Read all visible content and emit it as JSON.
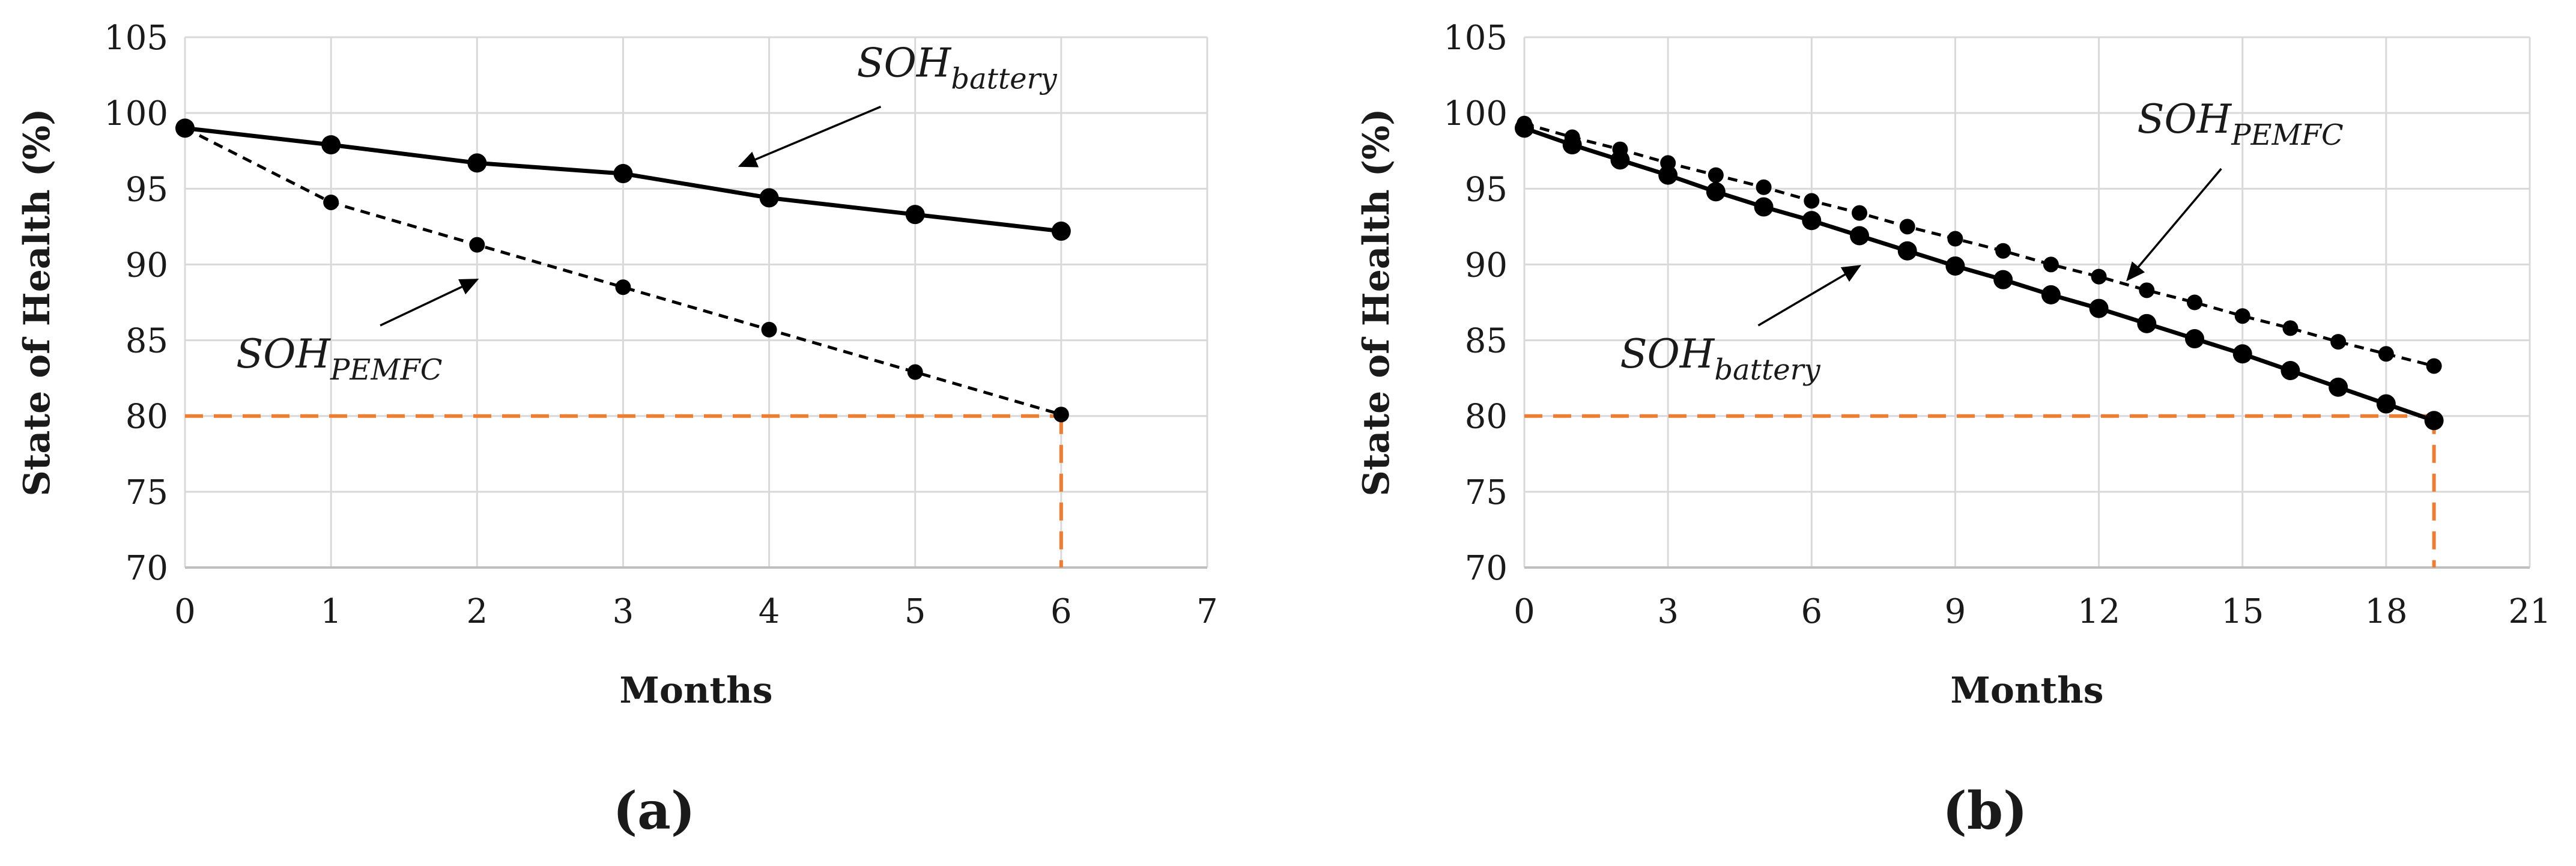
{
  "figure": {
    "background": "#ffffff",
    "grid_color": "#d9d9d9",
    "line_color": "#000000",
    "threshold_color": "#ed7d31"
  },
  "chart_data": [
    {
      "type": "line",
      "panel_label": "(a)",
      "title": "",
      "xlabel": "Months",
      "ylabel": "State of Health (%)",
      "xlim": [
        0,
        7
      ],
      "ylim": [
        70,
        105
      ],
      "xticks": [
        0,
        1,
        2,
        3,
        4,
        5,
        6,
        7
      ],
      "yticks": [
        70,
        75,
        80,
        85,
        90,
        95,
        100,
        105
      ],
      "grid": true,
      "series": [
        {
          "name": "SOH_battery",
          "label_main": "SOH",
          "label_sub": "battery",
          "style": "solid",
          "x": [
            0,
            1,
            2,
            3,
            4,
            5,
            6
          ],
          "y": [
            99.0,
            97.9,
            96.7,
            96.0,
            94.4,
            93.3,
            92.2
          ]
        },
        {
          "name": "SOH_PEMFC",
          "label_main": "SOH",
          "label_sub": "PEMFC",
          "style": "dashed",
          "x": [
            0,
            1,
            2,
            3,
            4,
            5,
            6
          ],
          "y": [
            99.0,
            94.1,
            91.3,
            88.5,
            85.7,
            82.9,
            80.1
          ]
        }
      ],
      "annotations": [
        {
          "series": "SOH_battery",
          "text_xy": [
            4.6,
            102.4
          ],
          "arrow_to": [
            3.8,
            96.5
          ]
        },
        {
          "series": "SOH_PEMFC",
          "text_xy": [
            0.35,
            83.2
          ],
          "arrow_to": [
            2.0,
            89.0
          ]
        }
      ],
      "threshold": {
        "y": 80,
        "x_end": 6
      }
    },
    {
      "type": "line",
      "panel_label": "(b)",
      "title": "",
      "xlabel": "Months",
      "ylabel": "State of Health  (%)",
      "xlim": [
        0,
        21
      ],
      "ylim": [
        70,
        105
      ],
      "xticks": [
        0,
        3,
        6,
        9,
        12,
        15,
        18,
        21
      ],
      "yticks": [
        70,
        75,
        80,
        85,
        90,
        95,
        100,
        105
      ],
      "grid": true,
      "series": [
        {
          "name": "SOH_PEMFC",
          "label_main": "SOH",
          "label_sub": "PEMFC",
          "style": "dashed",
          "x": [
            0,
            1,
            2,
            3,
            4,
            5,
            6,
            7,
            8,
            9,
            10,
            11,
            12,
            13,
            14,
            15,
            16,
            17,
            18,
            19
          ],
          "y": [
            99.3,
            98.4,
            97.6,
            96.7,
            95.9,
            95.1,
            94.2,
            93.4,
            92.5,
            91.7,
            90.9,
            90.0,
            89.2,
            88.3,
            87.5,
            86.6,
            85.8,
            84.9,
            84.1,
            83.3
          ]
        },
        {
          "name": "SOH_battery",
          "label_main": "SOH",
          "label_sub": "battery",
          "style": "solid",
          "x": [
            0,
            1,
            2,
            3,
            4,
            5,
            6,
            7,
            8,
            9,
            10,
            11,
            12,
            13,
            14,
            15,
            16,
            17,
            18,
            19
          ],
          "y": [
            99.0,
            97.9,
            96.9,
            95.9,
            94.8,
            93.8,
            92.9,
            91.9,
            90.9,
            89.9,
            89.0,
            88.0,
            87.1,
            86.1,
            85.1,
            84.1,
            83.0,
            81.9,
            80.8,
            79.7
          ]
        }
      ],
      "annotations": [
        {
          "series": "SOH_PEMFC",
          "text_xy": [
            12.8,
            98.7
          ],
          "arrow_to": [
            12.6,
            89.0
          ]
        },
        {
          "series": "SOH_battery",
          "text_xy": [
            2.0,
            83.2
          ],
          "arrow_to": [
            7.0,
            89.9
          ]
        }
      ],
      "threshold": {
        "y": 80,
        "x_end": 19
      }
    }
  ]
}
